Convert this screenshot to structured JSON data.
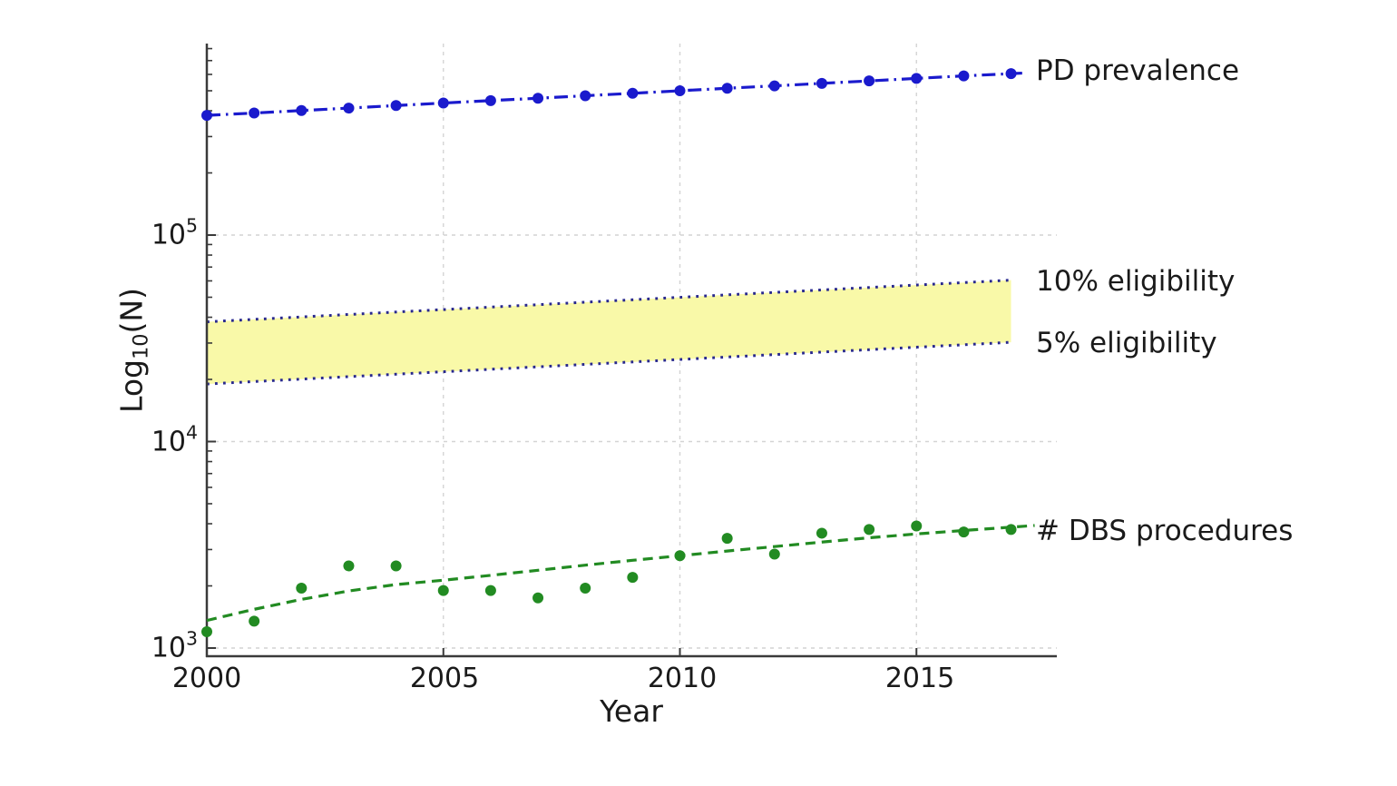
{
  "chart_data": {
    "type": "line",
    "title": "",
    "xlabel": "Year",
    "ylabel": "Log10(N)",
    "ylabel_parts": {
      "main": "Log",
      "sub": "10",
      "rest": "(N)"
    },
    "y_scale": "log10",
    "grid": true,
    "xlim": [
      2000,
      2018
    ],
    "ylim": [
      900,
      850000
    ],
    "x_ticks": [
      2000,
      2005,
      2010,
      2015
    ],
    "y_tick_exponents": [
      3,
      4,
      5
    ],
    "years": [
      2000,
      2001,
      2002,
      2003,
      2004,
      2005,
      2006,
      2007,
      2008,
      2009,
      2010,
      2011,
      2012,
      2013,
      2014,
      2015,
      2016,
      2017
    ],
    "series": [
      {
        "name": "PD prevalence",
        "type": "line+markers",
        "linestyle": "dashdot",
        "color": "#1a1acd",
        "values": [
          380000,
          390000,
          401000,
          412000,
          424000,
          436000,
          448000,
          460000,
          473000,
          486000,
          500000,
          514000,
          528000,
          543000,
          558000,
          574000,
          590000,
          605000
        ]
      },
      {
        "name": "# DBS procedures",
        "type": "scatter",
        "color": "#228b22",
        "values": [
          1200,
          1350,
          1950,
          2500,
          2500,
          1900,
          1900,
          1750,
          1950,
          2200,
          2800,
          3400,
          2850,
          3600,
          3750,
          3900,
          3650,
          3750
        ]
      },
      {
        "name": "DBS trend fit",
        "type": "line",
        "linestyle": "dashed",
        "color": "#228b22",
        "values": [
          1360,
          1540,
          1720,
          1890,
          2030,
          2130,
          2250,
          2380,
          2520,
          2660,
          2800,
          2950,
          3100,
          3260,
          3420,
          3570,
          3710,
          3850
        ]
      }
    ],
    "band": {
      "name": "DBS eligibility band",
      "fill_color": "#f9f9a8",
      "edge_color": "#28288e",
      "edge_style": "dotted",
      "top": {
        "label": "10% eligibility",
        "start_value": 38000,
        "end_value": 60500
      },
      "bottom": {
        "label": "5% eligibility",
        "start_value": 19000,
        "end_value": 30250
      }
    },
    "annotations": [
      "PD prevalence",
      "10% eligibility",
      "5% eligibility",
      "# DBS procedures"
    ],
    "colors": {
      "grid": "#d4d4d4",
      "axis": "#3a3a3a",
      "text": "#1a1a1a",
      "background": "#ffffff"
    }
  }
}
